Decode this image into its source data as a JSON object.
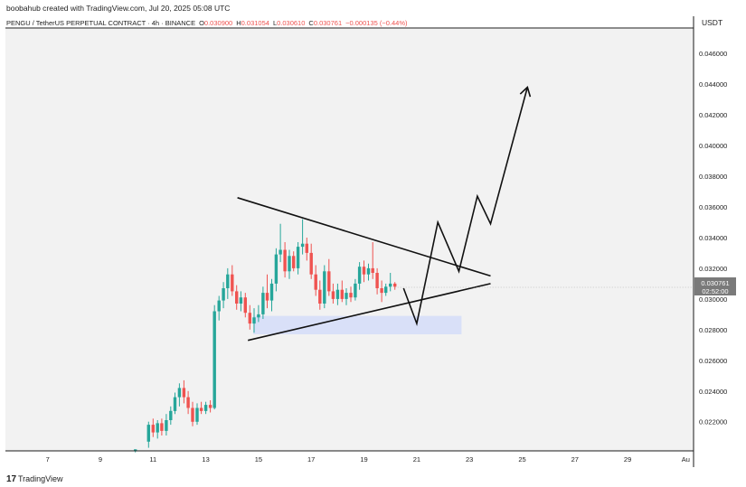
{
  "header": {
    "credit": "boobahub created with TradingView.com, Jul 20, 2025 05:08 UTC",
    "symbol": "PENGU / TetherUS PERPETUAL CONTRACT · 4h · BINANCE",
    "ohlc": [
      {
        "label": "O",
        "value": "0.030900"
      },
      {
        "label": "H",
        "value": "0.031054"
      },
      {
        "label": "L",
        "value": "0.030610"
      },
      {
        "label": "C",
        "value": "0.030761"
      }
    ],
    "change": "−0.000135 (−0.44%)"
  },
  "currency": "USDT",
  "last_price": {
    "value": "0.030761",
    "countdown": "02:52:00"
  },
  "footer": {
    "logo": "TradingView"
  },
  "colors": {
    "up": "#26a69a",
    "down": "#ef5350",
    "background": "#f2f2f2",
    "zone": "#d9e0f8",
    "price_label_bg": "#7a7a7a"
  },
  "chart_data": {
    "type": "candlestick",
    "y_axis": {
      "min": 0.0201,
      "max": 0.0476,
      "ticks": [
        0.022,
        0.024,
        0.026,
        0.028,
        0.03,
        0.032,
        0.034,
        0.036,
        0.038,
        0.04,
        0.042,
        0.044,
        0.046
      ],
      "tick_labels": [
        "0.022000",
        "0.024000",
        "0.026000",
        "0.028000",
        "0.030000",
        "0.032000",
        "0.034000",
        "0.036000",
        "0.038000",
        "0.040000",
        "0.042000",
        "0.044000",
        "0.046000"
      ]
    },
    "x_axis": {
      "unit": "July 2025 day",
      "min": 5.4,
      "max": 31.5,
      "ticks": [
        7,
        9,
        11,
        13,
        15,
        17,
        19,
        21,
        23,
        25,
        27,
        29,
        31.2
      ],
      "tick_labels": [
        "7",
        "9",
        "11",
        "13",
        "15",
        "17",
        "19",
        "21",
        "23",
        "25",
        "27",
        "29",
        "Au"
      ]
    },
    "candles": [
      {
        "x": 10.33,
        "o": 0.0201,
        "h": 0.0202,
        "l": 0.02,
        "c": 0.0202
      },
      {
        "x": 10.83,
        "o": 0.0207,
        "h": 0.022,
        "l": 0.0203,
        "c": 0.0218
      },
      {
        "x": 11.0,
        "o": 0.0218,
        "h": 0.0222,
        "l": 0.021,
        "c": 0.0213
      },
      {
        "x": 11.17,
        "o": 0.0213,
        "h": 0.0221,
        "l": 0.0209,
        "c": 0.0219
      },
      {
        "x": 11.33,
        "o": 0.0219,
        "h": 0.0222,
        "l": 0.0211,
        "c": 0.0214
      },
      {
        "x": 11.5,
        "o": 0.0214,
        "h": 0.0225,
        "l": 0.0211,
        "c": 0.0221
      },
      {
        "x": 11.67,
        "o": 0.0221,
        "h": 0.023,
        "l": 0.0218,
        "c": 0.0227
      },
      {
        "x": 11.83,
        "o": 0.0227,
        "h": 0.0239,
        "l": 0.0225,
        "c": 0.0236
      },
      {
        "x": 12.0,
        "o": 0.0236,
        "h": 0.0245,
        "l": 0.023,
        "c": 0.0242
      },
      {
        "x": 12.17,
        "o": 0.0242,
        "h": 0.0247,
        "l": 0.0232,
        "c": 0.0236
      },
      {
        "x": 12.33,
        "o": 0.0236,
        "h": 0.024,
        "l": 0.0225,
        "c": 0.0229
      },
      {
        "x": 12.5,
        "o": 0.0229,
        "h": 0.0233,
        "l": 0.0217,
        "c": 0.022
      },
      {
        "x": 12.67,
        "o": 0.022,
        "h": 0.0232,
        "l": 0.0218,
        "c": 0.0229
      },
      {
        "x": 12.83,
        "o": 0.0229,
        "h": 0.0233,
        "l": 0.0225,
        "c": 0.0227
      },
      {
        "x": 13.0,
        "o": 0.0227,
        "h": 0.0233,
        "l": 0.0225,
        "c": 0.0231
      },
      {
        "x": 13.17,
        "o": 0.0231,
        "h": 0.0234,
        "l": 0.0226,
        "c": 0.0229
      },
      {
        "x": 13.33,
        "o": 0.0229,
        "h": 0.0296,
        "l": 0.0228,
        "c": 0.0292
      },
      {
        "x": 13.5,
        "o": 0.0292,
        "h": 0.0302,
        "l": 0.0286,
        "c": 0.0299
      },
      {
        "x": 13.67,
        "o": 0.0299,
        "h": 0.0311,
        "l": 0.0294,
        "c": 0.0307
      },
      {
        "x": 13.83,
        "o": 0.0307,
        "h": 0.032,
        "l": 0.03,
        "c": 0.0316
      },
      {
        "x": 14.0,
        "o": 0.0316,
        "h": 0.0322,
        "l": 0.0302,
        "c": 0.0305
      },
      {
        "x": 14.17,
        "o": 0.0305,
        "h": 0.0309,
        "l": 0.0293,
        "c": 0.0297
      },
      {
        "x": 14.33,
        "o": 0.0297,
        "h": 0.0305,
        "l": 0.0292,
        "c": 0.0301
      },
      {
        "x": 14.5,
        "o": 0.0301,
        "h": 0.0304,
        "l": 0.0288,
        "c": 0.0291
      },
      {
        "x": 14.67,
        "o": 0.0291,
        "h": 0.0296,
        "l": 0.028,
        "c": 0.0284
      },
      {
        "x": 14.83,
        "o": 0.0284,
        "h": 0.0294,
        "l": 0.0278,
        "c": 0.0288
      },
      {
        "x": 15.0,
        "o": 0.0288,
        "h": 0.0296,
        "l": 0.0285,
        "c": 0.029
      },
      {
        "x": 15.17,
        "o": 0.029,
        "h": 0.0308,
        "l": 0.0287,
        "c": 0.0304
      },
      {
        "x": 15.33,
        "o": 0.0304,
        "h": 0.0316,
        "l": 0.0294,
        "c": 0.0299
      },
      {
        "x": 15.5,
        "o": 0.0299,
        "h": 0.0313,
        "l": 0.0292,
        "c": 0.031
      },
      {
        "x": 15.67,
        "o": 0.031,
        "h": 0.0333,
        "l": 0.0305,
        "c": 0.0329
      },
      {
        "x": 15.83,
        "o": 0.0329,
        "h": 0.0349,
        "l": 0.0324,
        "c": 0.0332
      },
      {
        "x": 16.0,
        "o": 0.0332,
        "h": 0.0337,
        "l": 0.0314,
        "c": 0.0318
      },
      {
        "x": 16.17,
        "o": 0.0318,
        "h": 0.0332,
        "l": 0.0313,
        "c": 0.0328
      },
      {
        "x": 16.33,
        "o": 0.0328,
        "h": 0.0331,
        "l": 0.0318,
        "c": 0.032
      },
      {
        "x": 16.5,
        "o": 0.032,
        "h": 0.0337,
        "l": 0.0316,
        "c": 0.0334
      },
      {
        "x": 16.67,
        "o": 0.0334,
        "h": 0.0352,
        "l": 0.0329,
        "c": 0.0336
      },
      {
        "x": 16.83,
        "o": 0.0336,
        "h": 0.034,
        "l": 0.0325,
        "c": 0.033
      },
      {
        "x": 17.0,
        "o": 0.033,
        "h": 0.0336,
        "l": 0.0313,
        "c": 0.0316
      },
      {
        "x": 17.17,
        "o": 0.0316,
        "h": 0.0322,
        "l": 0.0302,
        "c": 0.0306
      },
      {
        "x": 17.33,
        "o": 0.0306,
        "h": 0.0312,
        "l": 0.0293,
        "c": 0.0297
      },
      {
        "x": 17.5,
        "o": 0.0297,
        "h": 0.0322,
        "l": 0.0294,
        "c": 0.0318
      },
      {
        "x": 17.67,
        "o": 0.0318,
        "h": 0.0326,
        "l": 0.0302,
        "c": 0.0305
      },
      {
        "x": 17.83,
        "o": 0.0305,
        "h": 0.031,
        "l": 0.0297,
        "c": 0.03
      },
      {
        "x": 18.0,
        "o": 0.03,
        "h": 0.031,
        "l": 0.0296,
        "c": 0.0306
      },
      {
        "x": 18.17,
        "o": 0.0306,
        "h": 0.0312,
        "l": 0.0298,
        "c": 0.03
      },
      {
        "x": 18.33,
        "o": 0.03,
        "h": 0.0307,
        "l": 0.0296,
        "c": 0.0304
      },
      {
        "x": 18.5,
        "o": 0.0304,
        "h": 0.0308,
        "l": 0.0298,
        "c": 0.0301
      },
      {
        "x": 18.67,
        "o": 0.0301,
        "h": 0.0313,
        "l": 0.0299,
        "c": 0.031
      },
      {
        "x": 18.83,
        "o": 0.031,
        "h": 0.0324,
        "l": 0.0306,
        "c": 0.0321
      },
      {
        "x": 19.0,
        "o": 0.0321,
        "h": 0.0325,
        "l": 0.0311,
        "c": 0.0316
      },
      {
        "x": 19.17,
        "o": 0.0316,
        "h": 0.0323,
        "l": 0.0312,
        "c": 0.032
      },
      {
        "x": 19.33,
        "o": 0.032,
        "h": 0.0337,
        "l": 0.0313,
        "c": 0.0317
      },
      {
        "x": 19.5,
        "o": 0.0317,
        "h": 0.032,
        "l": 0.0303,
        "c": 0.0307
      },
      {
        "x": 19.67,
        "o": 0.0307,
        "h": 0.0312,
        "l": 0.0298,
        "c": 0.0304
      },
      {
        "x": 19.83,
        "o": 0.0304,
        "h": 0.031,
        "l": 0.0302,
        "c": 0.0308
      },
      {
        "x": 20.0,
        "o": 0.0308,
        "h": 0.0317,
        "l": 0.0305,
        "c": 0.031
      },
      {
        "x": 20.17,
        "o": 0.031,
        "h": 0.0311,
        "l": 0.0306,
        "c": 0.0308
      }
    ],
    "annotations": {
      "support_zone": {
        "x1": 14.8,
        "x2": 22.7,
        "y_low": 0.0277,
        "y_high": 0.0289
      },
      "triangle_upper": {
        "points": [
          [
            14.2,
            0.0366
          ],
          [
            23.8,
            0.0315
          ]
        ]
      },
      "triangle_lower": {
        "points": [
          [
            14.6,
            0.0273
          ],
          [
            23.8,
            0.031
          ]
        ]
      },
      "projection_path": {
        "points": [
          [
            20.5,
            0.0307
          ],
          [
            21.0,
            0.0284
          ],
          [
            21.8,
            0.035
          ],
          [
            22.6,
            0.0318
          ],
          [
            23.3,
            0.0367
          ],
          [
            23.8,
            0.0349
          ],
          [
            25.2,
            0.0438
          ]
        ],
        "arrow": true
      }
    }
  }
}
